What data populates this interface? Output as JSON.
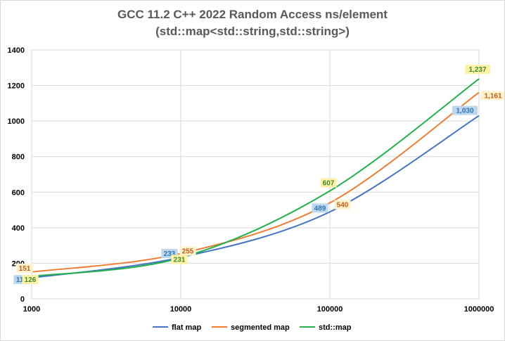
{
  "chart_data": {
    "type": "line",
    "title": "GCC 11.2 C++ 2022 Random Access ns/element",
    "subtitle": "(std::map<std::string,std::string>)",
    "x": [
      1000,
      10000,
      100000,
      1000000
    ],
    "x_tick_labels": [
      "1000",
      "10000",
      "100000",
      "1000000"
    ],
    "x_scale": "log",
    "ylim": [
      0,
      1400
    ],
    "y_ticks": [
      0,
      200,
      400,
      600,
      800,
      1000,
      1200,
      1400
    ],
    "grid": true,
    "legend_position": "bottom",
    "series": [
      {
        "name": "flat map",
        "color": "#4472C4",
        "values": [
          118,
          233,
          489,
          1030
        ],
        "labels": [
          "118",
          "233",
          "489",
          "1,030"
        ],
        "label_bg": "#BDD7EE",
        "label_color": "#2E75B6"
      },
      {
        "name": "segmented map",
        "color": "#ED7D31",
        "values": [
          151,
          255,
          540,
          1161
        ],
        "labels": [
          "151",
          "255",
          "540",
          "1,161"
        ],
        "label_bg": "#FFF2CC",
        "label_color": "#C55A11"
      },
      {
        "name": "std::map",
        "color": "#21B14C",
        "values": [
          126,
          231,
          607,
          1237
        ],
        "labels": [
          "126",
          "231",
          "607",
          "1,237"
        ],
        "label_bg": "#FFF2A6",
        "label_color": "#3A8A2E"
      }
    ]
  }
}
